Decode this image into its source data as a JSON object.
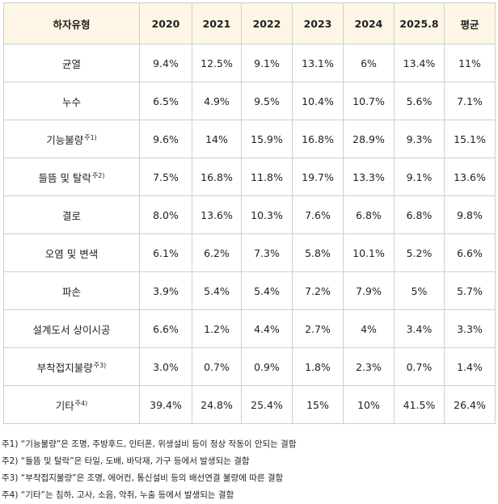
{
  "table": {
    "header": [
      "하자유형",
      "2020",
      "2021",
      "2022",
      "2023",
      "2024",
      "2025.8",
      "평균"
    ],
    "rows": [
      {
        "label": "균열",
        "cells": [
          "9.4%",
          "12.5%",
          "9.1%",
          "13.1%",
          "6%",
          "13.4%",
          "11%"
        ]
      },
      {
        "label": "누수",
        "cells": [
          "6.5%",
          "4.9%",
          "9.5%",
          "10.4%",
          "10.7%",
          "5.6%",
          "7.1%"
        ]
      },
      {
        "label": "기능불량",
        "note": "주1)",
        "cells": [
          "9.6%",
          "14%",
          "15.9%",
          "16.8%",
          "28.9%",
          "9.3%",
          "15.1%"
        ]
      },
      {
        "label": "들뜸 및 탈락",
        "note": "주2)",
        "cells": [
          "7.5%",
          "16.8%",
          "11.8%",
          "19.7%",
          "13.3%",
          "9.1%",
          "13.6%"
        ]
      },
      {
        "label": "결로",
        "cells": [
          "8.0%",
          "13.6%",
          "10.3%",
          "7.6%",
          "6.8%",
          "6.8%",
          "9.8%"
        ]
      },
      {
        "label": "오염 및 변색",
        "cells": [
          "6.1%",
          "6.2%",
          "7.3%",
          "5.8%",
          "10.1%",
          "5.2%",
          "6.6%"
        ]
      },
      {
        "label": "파손",
        "cells": [
          "3.9%",
          "5.4%",
          "5.4%",
          "7.2%",
          "7.9%",
          "5%",
          "5.7%"
        ]
      },
      {
        "label": "설계도서 상이시공",
        "cells": [
          "6.6%",
          "1.2%",
          "4.4%",
          "2.7%",
          "4%",
          "3.4%",
          "3.3%"
        ]
      },
      {
        "label": "부착접지불량",
        "note": "주3)",
        "cells": [
          "3.0%",
          "0.7%",
          "0.9%",
          "1.8%",
          "2.3%",
          "0.7%",
          "1.4%"
        ]
      },
      {
        "label": "기타",
        "note": "주4)",
        "cells": [
          "39.4%",
          "24.8%",
          "25.4%",
          "15%",
          "10%",
          "41.5%",
          "26.4%"
        ]
      }
    ]
  },
  "notes": [
    "주1) “기능불량”은 조명, 주방후드, 인터폰, 위생설비 등이 정상 작동이 안되는 결함",
    "주2) “들뜸 및 탈락”은 타일, 도배, 바닥재, 가구 등에서 발생되는 결함",
    "주3) “부착접지불량”은 조명, 에어컨, 통신설비 등의 배선연결 불량에 따른 결함",
    "주4) “기타”는 침하, 고사, 소음, 악취, 누출 등에서 발생되는 결함"
  ]
}
